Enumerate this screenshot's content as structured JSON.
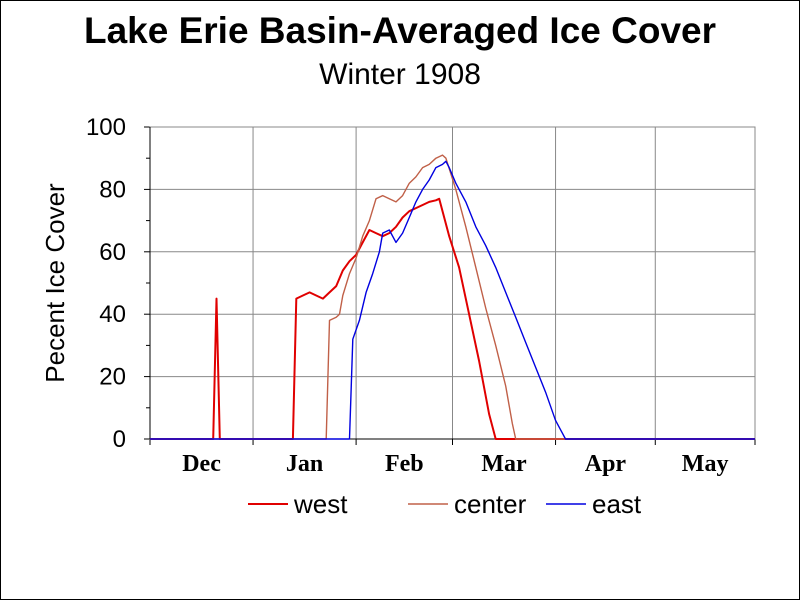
{
  "chart_data": {
    "type": "line",
    "title": "Lake Erie Basin-Averaged Ice Cover",
    "subtitle": "Winter 1908",
    "ylabel": "Pecent Ice Cover",
    "xlabel": "",
    "ylim": [
      0,
      100
    ],
    "yticks": [
      "0",
      "20",
      "40",
      "60",
      "80",
      "100"
    ],
    "xlim": [
      0,
      182
    ],
    "x_unit": "days from Dec 1",
    "month_labels": [
      "Dec",
      "Jan",
      "Feb",
      "Mar",
      "Apr",
      "May"
    ],
    "month_starts": [
      0,
      31,
      62,
      91,
      122,
      152,
      182
    ],
    "grid": true,
    "legend_position": "bottom",
    "series": [
      {
        "name": "west",
        "color": "#e00000",
        "points": [
          [
            0,
            0
          ],
          [
            19,
            0
          ],
          [
            20,
            45
          ],
          [
            21,
            0
          ],
          [
            43,
            0
          ],
          [
            44,
            45
          ],
          [
            46,
            46
          ],
          [
            48,
            47
          ],
          [
            50,
            46
          ],
          [
            52,
            45
          ],
          [
            54,
            47
          ],
          [
            56,
            49
          ],
          [
            58,
            54
          ],
          [
            60,
            57
          ],
          [
            62,
            59
          ],
          [
            64,
            63
          ],
          [
            66,
            67
          ],
          [
            68,
            66
          ],
          [
            70,
            65
          ],
          [
            72,
            66
          ],
          [
            74,
            68
          ],
          [
            76,
            71
          ],
          [
            78,
            73
          ],
          [
            80,
            74
          ],
          [
            82,
            75
          ],
          [
            84,
            76
          ],
          [
            86,
            76.5
          ],
          [
            87,
            77
          ],
          [
            90,
            65
          ],
          [
            93,
            55
          ],
          [
            96,
            40
          ],
          [
            99,
            25
          ],
          [
            102,
            8
          ],
          [
            104,
            0
          ],
          [
            182,
            0
          ]
        ]
      },
      {
        "name": "center",
        "color": "#c06048",
        "points": [
          [
            0,
            0
          ],
          [
            53,
            0
          ],
          [
            54,
            38
          ],
          [
            56,
            39
          ],
          [
            57,
            40
          ],
          [
            58,
            46
          ],
          [
            60,
            53
          ],
          [
            62,
            58
          ],
          [
            64,
            65
          ],
          [
            66,
            70
          ],
          [
            68,
            77
          ],
          [
            70,
            78
          ],
          [
            72,
            77
          ],
          [
            74,
            76
          ],
          [
            76,
            78
          ],
          [
            78,
            82
          ],
          [
            80,
            84
          ],
          [
            82,
            87
          ],
          [
            84,
            88
          ],
          [
            86,
            90
          ],
          [
            88,
            91
          ],
          [
            89,
            90
          ],
          [
            92,
            80
          ],
          [
            95,
            68
          ],
          [
            98,
            55
          ],
          [
            101,
            42
          ],
          [
            104,
            30
          ],
          [
            107,
            17
          ],
          [
            109,
            5
          ],
          [
            110,
            0
          ],
          [
            182,
            0
          ]
        ]
      },
      {
        "name": "east",
        "color": "#0000e0",
        "points": [
          [
            0,
            0
          ],
          [
            60,
            0
          ],
          [
            61,
            32
          ],
          [
            63,
            38
          ],
          [
            65,
            47
          ],
          [
            67,
            53
          ],
          [
            69,
            60
          ],
          [
            70,
            66
          ],
          [
            72,
            67
          ],
          [
            74,
            63
          ],
          [
            76,
            66
          ],
          [
            78,
            71
          ],
          [
            80,
            76
          ],
          [
            82,
            80
          ],
          [
            84,
            83
          ],
          [
            86,
            87
          ],
          [
            88,
            88
          ],
          [
            89,
            89
          ],
          [
            90,
            87
          ],
          [
            92,
            82
          ],
          [
            95,
            76
          ],
          [
            98,
            68
          ],
          [
            101,
            62
          ],
          [
            104,
            55
          ],
          [
            107,
            47
          ],
          [
            110,
            39
          ],
          [
            113,
            31
          ],
          [
            116,
            23
          ],
          [
            119,
            15
          ],
          [
            122,
            6
          ],
          [
            124,
            2
          ],
          [
            125,
            0
          ],
          [
            182,
            0
          ]
        ]
      }
    ]
  }
}
